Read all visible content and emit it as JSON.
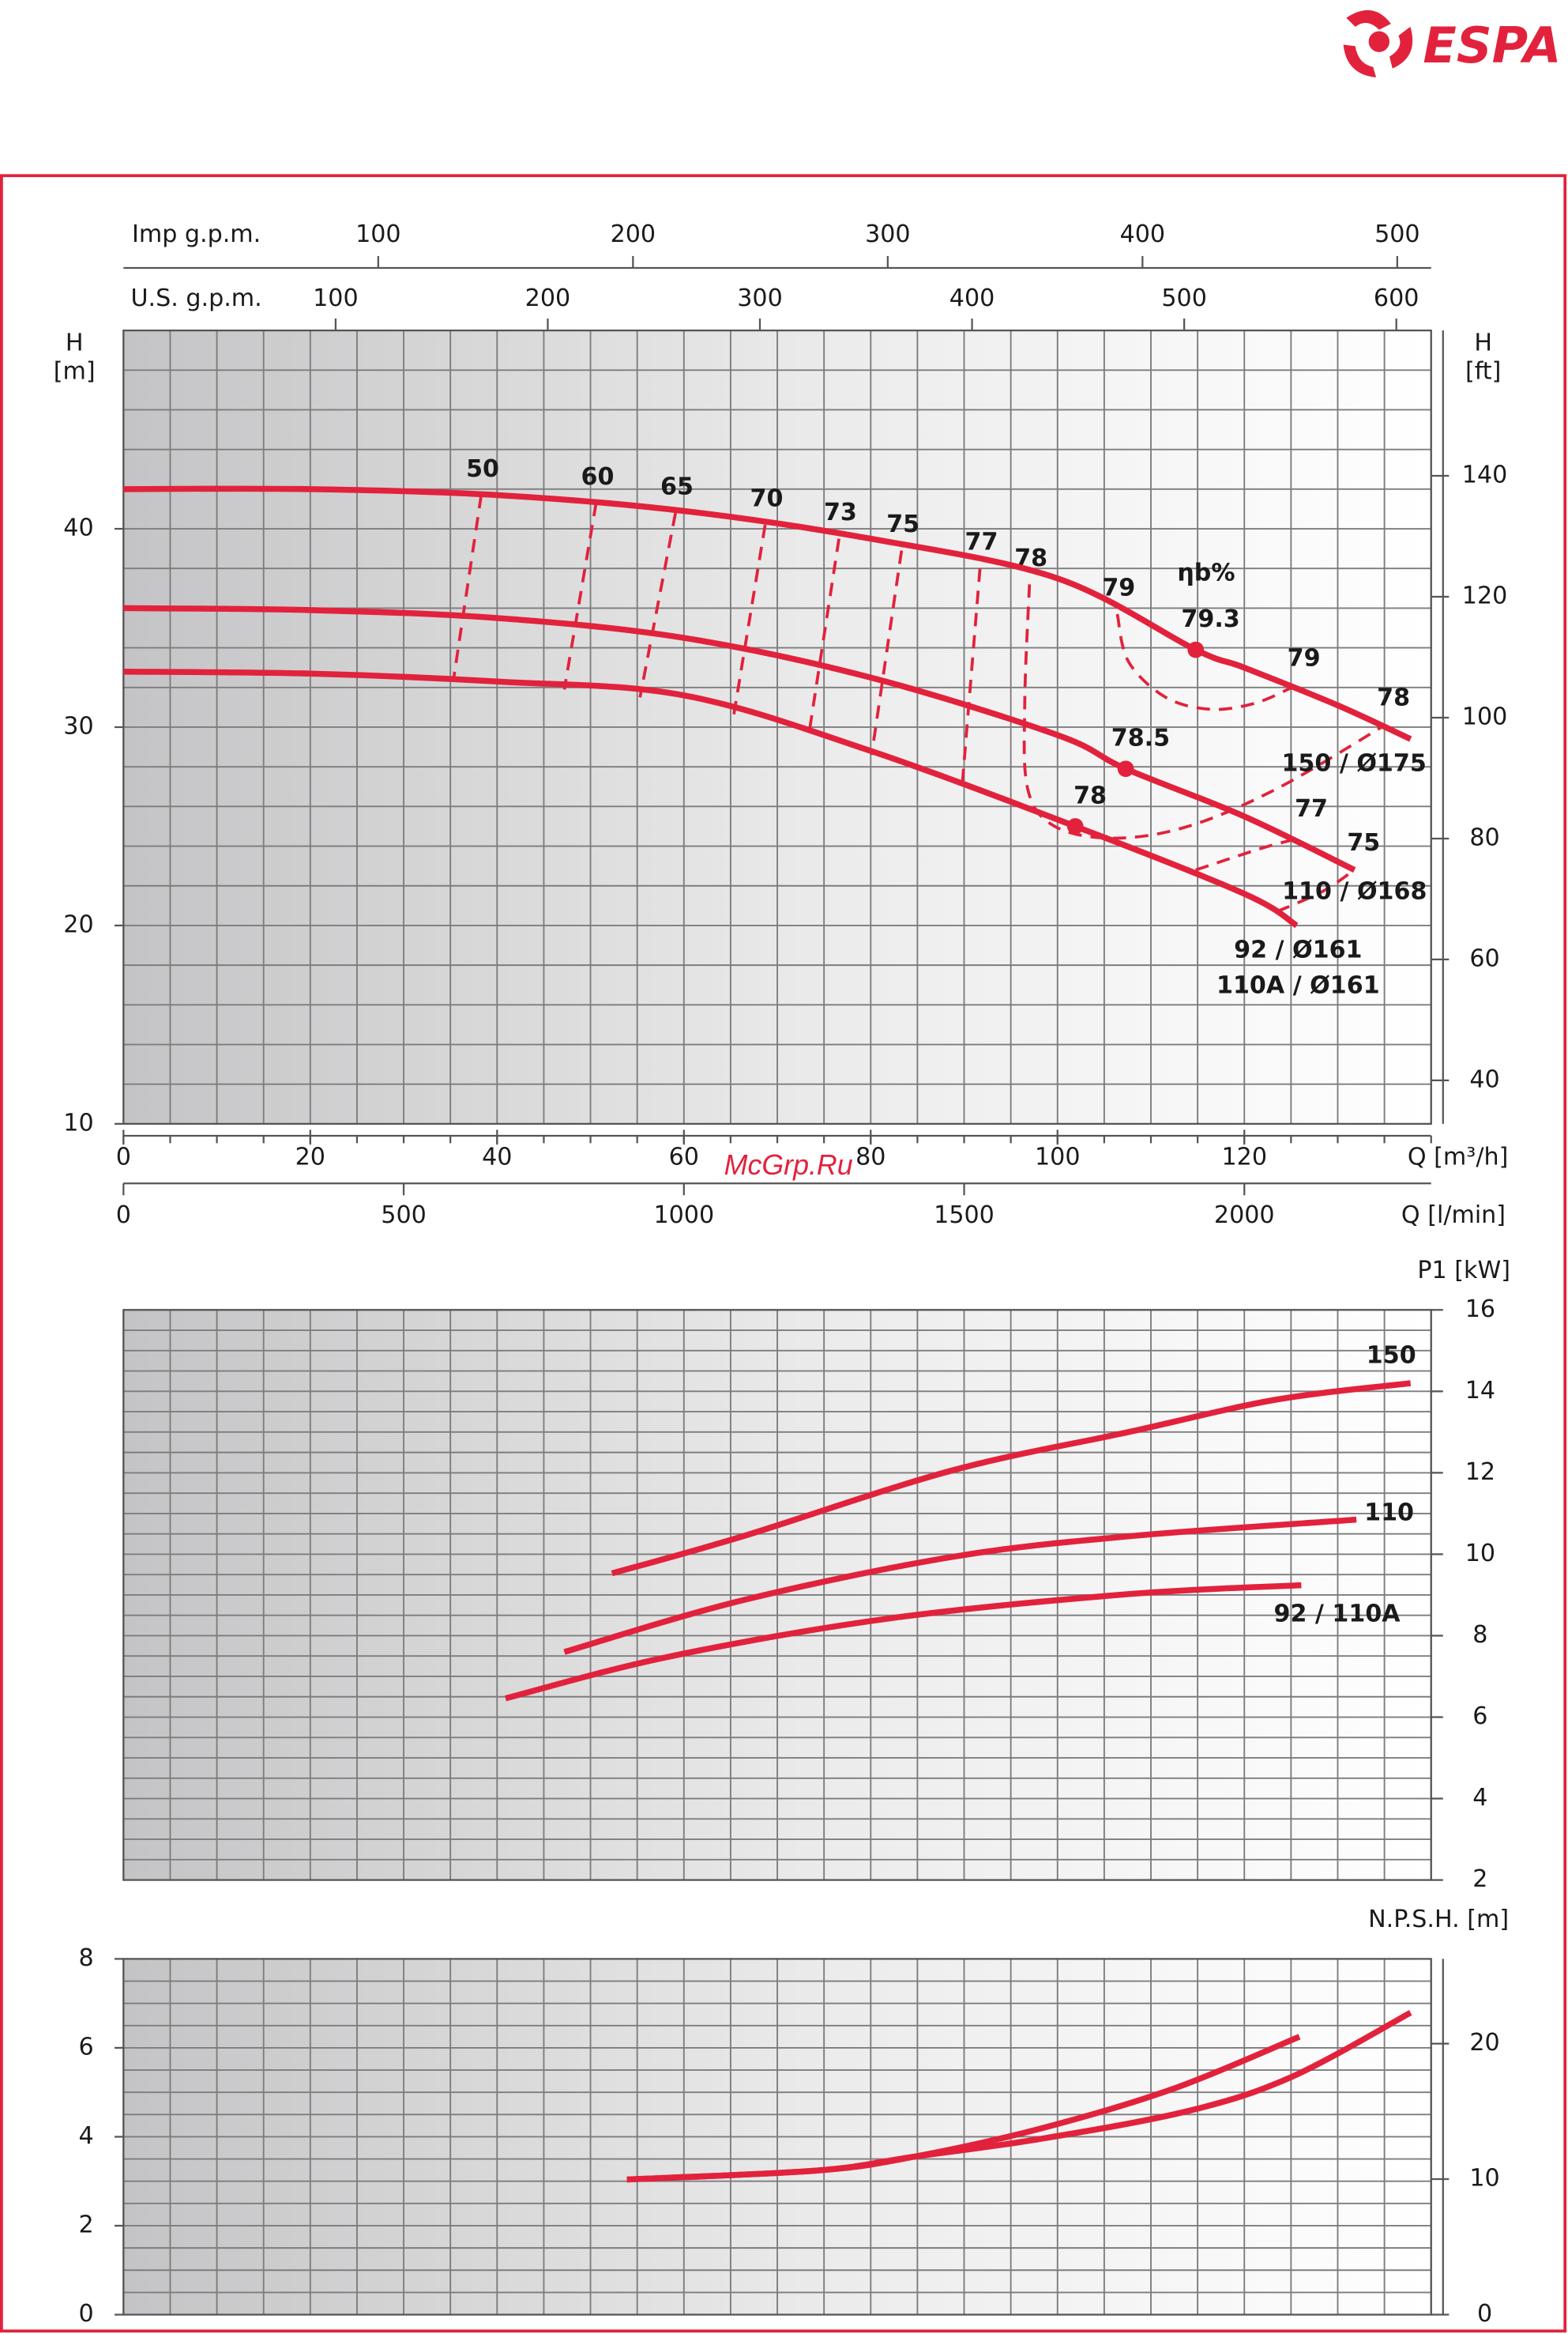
{
  "header": {
    "logo": "ESPA"
  },
  "watermark": "McGrp.Ru",
  "chart_data": [
    {
      "type": "line",
      "yaxis_side": "left",
      "ylabel": [
        "H",
        "[m]"
      ],
      "y2label": [
        "H",
        "[ft]"
      ],
      "xlabel": "Q [m³/h]",
      "xlim": [
        0,
        140
      ],
      "xticks": [
        0,
        20,
        40,
        60,
        80,
        100,
        120
      ],
      "xgrid": [
        0,
        5,
        10,
        15,
        20,
        25,
        30,
        35,
        40,
        45,
        50,
        55,
        60,
        65,
        70,
        75,
        80,
        85,
        90,
        95,
        100,
        105,
        110,
        115,
        120,
        125,
        130,
        135,
        140
      ],
      "ylim": [
        10,
        50
      ],
      "yticks": [
        10,
        20,
        30,
        40
      ],
      "ygrid": [
        10,
        12,
        14,
        16,
        18,
        20,
        22,
        24,
        26,
        28,
        30,
        32,
        34,
        36,
        38,
        40,
        42,
        44,
        46,
        48,
        50
      ],
      "y2lim": [
        32.81,
        164.05
      ],
      "y2ticks": [
        40,
        60,
        80,
        100,
        120,
        140
      ],
      "extra_x_axes": [
        {
          "label": "Imp g.p.m.",
          "xlim": [
            0,
            513.3
          ],
          "xticks": [
            100,
            200,
            300,
            400,
            500
          ]
        },
        {
          "label": "U.S. g.p.m.",
          "xlim": [
            0,
            616.4
          ],
          "xticks": [
            100,
            200,
            300,
            400,
            500,
            600
          ]
        },
        {
          "label": "Q [l/min]",
          "xlim": [
            0,
            2333.3
          ],
          "xticks": [
            0,
            500,
            1000,
            1500,
            2000
          ]
        }
      ],
      "color": "#e2223c",
      "series": [
        {
          "name": "150 / Ø175",
          "x": [
            0,
            20,
            40,
            60,
            80,
            100,
            114.8,
            120,
            130,
            137.8
          ],
          "values": [
            42.0,
            42.0,
            41.7,
            40.9,
            39.5,
            37.5,
            33.9,
            33.0,
            31.1,
            29.4
          ]
        },
        {
          "name": "110 / Ø168",
          "x": [
            0,
            20,
            40,
            60,
            80,
            100,
            107.3,
            120,
            131.8
          ],
          "values": [
            36.0,
            35.9,
            35.5,
            34.5,
            32.5,
            29.6,
            27.9,
            25.5,
            22.8
          ]
        },
        {
          "name": "92 / Ø161",
          "alias": "110A / Ø161",
          "x": [
            0,
            20,
            40,
            60,
            80,
            101.9,
            120,
            125.6
          ],
          "values": [
            32.8,
            32.7,
            32.3,
            31.6,
            28.8,
            25.0,
            21.6,
            20.0
          ]
        }
      ],
      "efficiency_label": "ηb%",
      "efficiency_lines": [
        {
          "name": "50",
          "labels": "start",
          "x": [
            38.3,
            35.3
          ],
          "values": [
            41.7,
            32.3
          ]
        },
        {
          "name": "60",
          "labels": "start",
          "x": [
            50.6,
            47.2
          ],
          "values": [
            41.3,
            31.9
          ]
        },
        {
          "name": "65",
          "labels": "start",
          "x": [
            59.1,
            55.3
          ],
          "values": [
            40.8,
            31.5
          ]
        },
        {
          "name": "70",
          "labels": "start",
          "x": [
            68.7,
            65.3
          ],
          "values": [
            40.2,
            30.5
          ]
        },
        {
          "name": "73",
          "labels": "start",
          "x": [
            76.6,
            73.4
          ],
          "values": [
            39.5,
            29.7
          ]
        },
        {
          "name": "75",
          "labels": "start",
          "x": [
            83.3,
            80.1
          ],
          "values": [
            38.9,
            28.6
          ]
        },
        {
          "name": "77",
          "labels": "start",
          "x": [
            91.7,
            89.8
          ],
          "values": [
            38.0,
            27.1
          ]
        },
        {
          "name": "78",
          "labels": "both",
          "x": [
            97.0,
            96.5,
            96.8,
            99.7,
            106.0,
            114.0,
            123.5,
            134.7
          ],
          "values": [
            37.2,
            31.4,
            26.9,
            25.0,
            24.4,
            25.0,
            26.9,
            30.0
          ]
        },
        {
          "name": "79",
          "labels": "both",
          "x": [
            106.4,
            107.6,
            111.6,
            116.4,
            121.1,
            125.1
          ],
          "values": [
            35.7,
            33.3,
            31.5,
            30.9,
            31.2,
            32.0
          ]
        },
        {
          "name": "77",
          "labels": "end",
          "x": [
            114.8,
            121.9,
            125.9
          ],
          "values": [
            22.8,
            23.9,
            24.4
          ]
        },
        {
          "name": "75",
          "labels": "end",
          "x": [
            123.5,
            128.3,
            131.5
          ],
          "values": [
            20.7,
            21.7,
            22.7
          ]
        }
      ],
      "best_points": [
        {
          "name": "79.3",
          "x": 114.8,
          "value": 33.9
        },
        {
          "name": "78.5",
          "x": 107.3,
          "value": 27.9
        },
        {
          "name": "78",
          "x": 101.9,
          "value": 25.0
        }
      ]
    },
    {
      "type": "line",
      "yaxis_side": "right",
      "ylabel": "P1 [kW]",
      "xlim": [
        0,
        140
      ],
      "xgrid": [
        0,
        5,
        10,
        15,
        20,
        25,
        30,
        35,
        40,
        45,
        50,
        55,
        60,
        65,
        70,
        75,
        80,
        85,
        90,
        95,
        100,
        105,
        110,
        115,
        120,
        125,
        130,
        135,
        140
      ],
      "ylim": [
        2,
        16
      ],
      "yticks": [
        2,
        4,
        6,
        8,
        10,
        12,
        14,
        16
      ],
      "ygrid": [
        2,
        2.5,
        3,
        3.5,
        4,
        4.5,
        5,
        5.5,
        6,
        6.5,
        7,
        7.5,
        8,
        8.5,
        9,
        9.5,
        10,
        10.5,
        11,
        11.5,
        12,
        12.5,
        13,
        13.5,
        14,
        14.5,
        15,
        15.5,
        16
      ],
      "color": "#e2223c",
      "series": [
        {
          "name": "150",
          "x": [
            52.3,
            66.3,
            88.6,
            107.6,
            123.5,
            137.8
          ],
          "values": [
            9.53,
            10.44,
            12.05,
            13.0,
            13.8,
            14.2
          ]
        },
        {
          "name": "110",
          "x": [
            47.2,
            66.3,
            88.6,
            107.6,
            132.0
          ],
          "values": [
            7.6,
            8.87,
            9.93,
            10.44,
            10.85
          ]
        },
        {
          "name": "92 / 110A",
          "x": [
            40.9,
            58.3,
            82.2,
            107.6,
            126.1
          ],
          "values": [
            6.46,
            7.48,
            8.43,
            9.02,
            9.24
          ]
        }
      ]
    },
    {
      "type": "line",
      "yaxis_side": "left",
      "ylabel": "N.P.S.H. [m]",
      "xlim": [
        0,
        140
      ],
      "xgrid": [
        0,
        5,
        10,
        15,
        20,
        25,
        30,
        35,
        40,
        45,
        50,
        55,
        60,
        65,
        70,
        75,
        80,
        85,
        90,
        95,
        100,
        105,
        110,
        115,
        120,
        125,
        130,
        135,
        140
      ],
      "ylim": [
        0,
        8
      ],
      "yticks": [
        0,
        2,
        4,
        6,
        8
      ],
      "ygrid": [
        0,
        0.5,
        1,
        1.5,
        2,
        2.5,
        3,
        3.5,
        4,
        4.5,
        5,
        5.5,
        6,
        6.5,
        7,
        7.5,
        8
      ],
      "y2lim": [
        0,
        26.25
      ],
      "y2ticks": [
        0,
        10,
        20
      ],
      "color": "#e2223c",
      "series": [
        {
          "x": [
            53.9,
            74.2,
            84.6,
            98.1,
            112.4,
            125.9
          ],
          "values": [
            3.04,
            3.24,
            3.55,
            4.18,
            5.08,
            6.25
          ]
        },
        {
          "x": [
            53.9,
            74.2,
            84.6,
            98.1,
            114.0,
            125.1,
            137.8
          ],
          "values": [
            3.04,
            3.24,
            3.55,
            3.95,
            4.58,
            5.35,
            6.79
          ]
        }
      ]
    }
  ]
}
